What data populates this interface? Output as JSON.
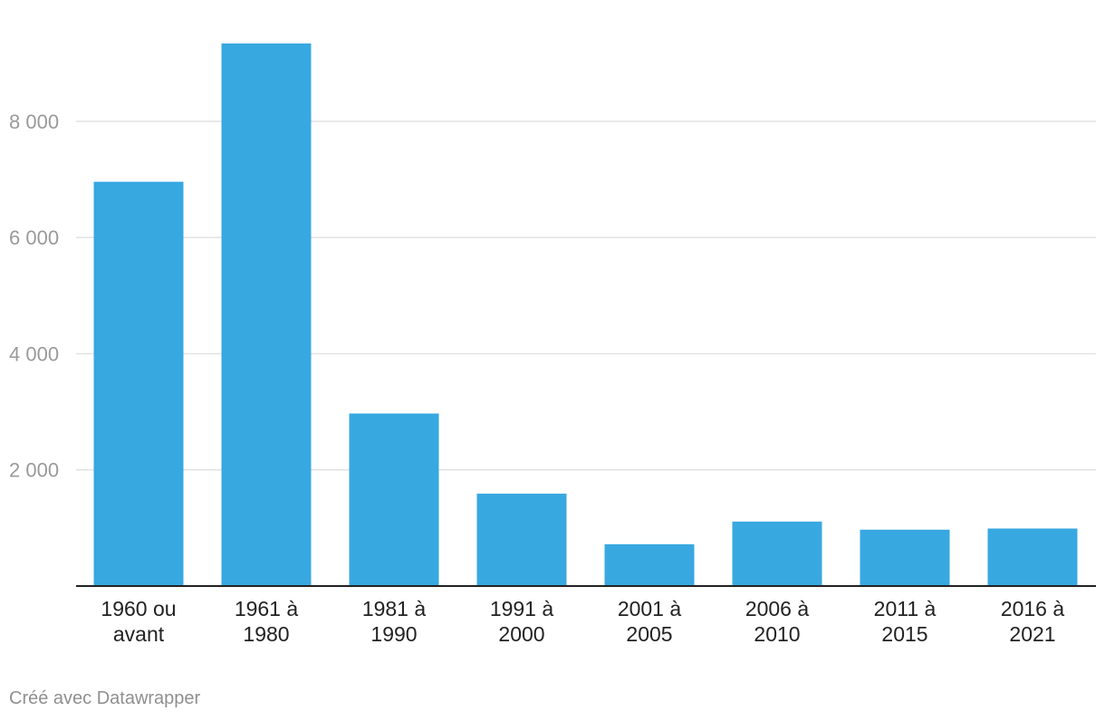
{
  "chart_data": {
    "type": "bar",
    "categories": [
      [
        "1960 ou",
        "avant"
      ],
      [
        "1961 à",
        "1980"
      ],
      [
        "1981 à",
        "1990"
      ],
      [
        "1991 à",
        "2000"
      ],
      [
        "2001 à",
        "2005"
      ],
      [
        "2006 à",
        "2010"
      ],
      [
        "2011 à",
        "2015"
      ],
      [
        "2016 à",
        "2021"
      ]
    ],
    "values": [
      6960,
      9340,
      2970,
      1590,
      720,
      1110,
      970,
      990
    ],
    "y_ticks": [
      2000,
      4000,
      6000,
      8000
    ],
    "y_tick_labels": [
      "2 000",
      "4 000",
      "6 000",
      "8 000"
    ],
    "ylim": [
      0,
      9340
    ],
    "grid": true,
    "bar_color": "#38a8e0",
    "grid_color": "#e2e2e2",
    "axis_color": "#222222"
  },
  "footer": {
    "credit": "Créé avec Datawrapper"
  }
}
